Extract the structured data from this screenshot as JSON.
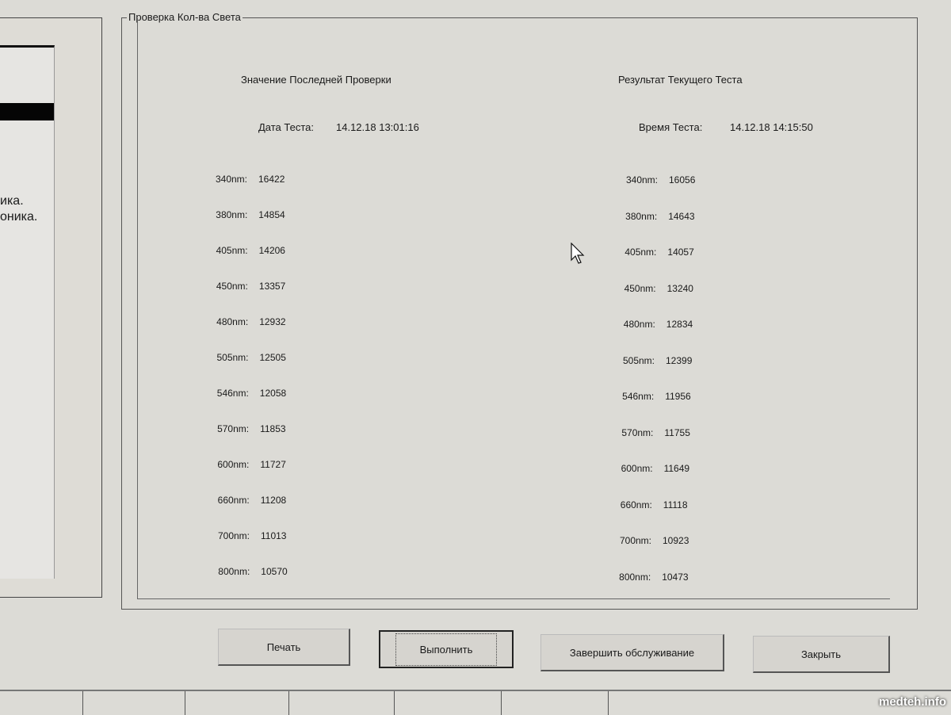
{
  "left_panel": {
    "text_lines": [
      "ика.",
      "оника."
    ]
  },
  "group": {
    "title": "Проверка Кол-ва Света"
  },
  "last_check": {
    "heading": "Значение Последней Проверки",
    "date_label": "Дата Теста:",
    "date_value": "14.12.18 13:01:16",
    "rows": [
      {
        "label": "340nm:",
        "value": "16422"
      },
      {
        "label": "380nm:",
        "value": "14854"
      },
      {
        "label": "405nm:",
        "value": "14206"
      },
      {
        "label": "450nm:",
        "value": "13357"
      },
      {
        "label": "480nm:",
        "value": "12932"
      },
      {
        "label": "505nm:",
        "value": "12505"
      },
      {
        "label": "546nm:",
        "value": "12058"
      },
      {
        "label": "570nm:",
        "value": "11853"
      },
      {
        "label": "600nm:",
        "value": "11727"
      },
      {
        "label": "660nm:",
        "value": "11208"
      },
      {
        "label": "700nm:",
        "value": "11013"
      },
      {
        "label": "800nm:",
        "value": "10570"
      }
    ]
  },
  "current_test": {
    "heading": "Результат Текущего Теста",
    "time_label": "Время Теста:",
    "time_value": "14.12.18 14:15:50",
    "rows": [
      {
        "label": "340nm:",
        "value": "16056"
      },
      {
        "label": "380nm:",
        "value": "14643"
      },
      {
        "label": "405nm:",
        "value": "14057"
      },
      {
        "label": "450nm:",
        "value": "13240"
      },
      {
        "label": "480nm:",
        "value": "12834"
      },
      {
        "label": "505nm:",
        "value": "12399"
      },
      {
        "label": "546nm:",
        "value": "11956"
      },
      {
        "label": "570nm:",
        "value": "11755"
      },
      {
        "label": "600nm:",
        "value": "11649"
      },
      {
        "label": "660nm:",
        "value": "11118"
      },
      {
        "label": "700nm:",
        "value": "10923"
      },
      {
        "label": "800nm:",
        "value": "10473"
      }
    ]
  },
  "buttons": {
    "print": "Печать",
    "run": "Выполнить",
    "finish": "Завершить обслуживание",
    "close": "Закрыть"
  },
  "watermark": "medteh.info"
}
